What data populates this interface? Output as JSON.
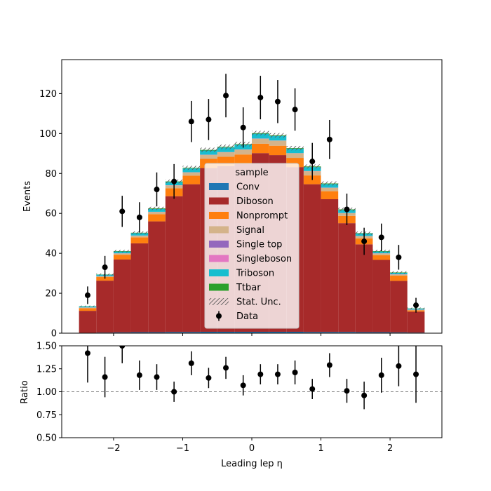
{
  "chart_data": {
    "type": "bar",
    "stacked": true,
    "x_bin_edges": [
      -2.5,
      -2.25,
      -2.0,
      -1.75,
      -1.5,
      -1.25,
      -1.0,
      -0.75,
      -0.5,
      -0.25,
      0.0,
      0.25,
      0.5,
      0.75,
      1.0,
      1.25,
      1.5,
      1.75,
      2.0,
      2.25,
      2.5
    ],
    "xlabel": "Leading lep η",
    "xlim": [
      -2.75,
      2.75
    ],
    "x_ticks": [
      -2,
      -1,
      0,
      1,
      2
    ],
    "x_tick_labels": [
      "−2",
      "−1",
      "0",
      "1",
      "2"
    ],
    "top_panel": {
      "ylabel": "Events",
      "ylim": [
        0,
        137
      ],
      "y_ticks": [
        0,
        20,
        40,
        60,
        80,
        100,
        120
      ],
      "series": [
        {
          "name": "Conv",
          "color": "#1f77b4",
          "values": [
            0.2,
            0.3,
            0.4,
            0.5,
            0.5,
            0.6,
            0.6,
            0.7,
            0.7,
            0.7,
            0.7,
            0.7,
            0.7,
            0.6,
            0.6,
            0.6,
            0.5,
            0.5,
            0.4,
            0.3
          ]
        },
        {
          "name": "Diboson",
          "color": "#a72a2a",
          "values": [
            11,
            26,
            36.5,
            44.5,
            55.5,
            68,
            74,
            82,
            83,
            84,
            89.5,
            88.5,
            82.5,
            74,
            66.5,
            54.5,
            44,
            36.2,
            25.8,
            10.5
          ]
        },
        {
          "name": "Nonprompt",
          "color": "#ff7f0e",
          "values": [
            1.3,
            1.8,
            2.4,
            3.0,
            3.6,
            4.0,
            4.3,
            4.6,
            4.7,
            4.8,
            4.7,
            4.7,
            4.6,
            4.4,
            4.0,
            3.6,
            3.0,
            2.4,
            2.6,
            0.6
          ]
        },
        {
          "name": "Signal",
          "color": "#d4b38a",
          "values": [
            0.3,
            0.4,
            0.6,
            0.8,
            1.1,
            1.4,
            1.6,
            2.0,
            2.2,
            2.4,
            2.5,
            2.5,
            2.3,
            2.1,
            1.7,
            1.4,
            1.1,
            0.8,
            0.6,
            0.3
          ]
        },
        {
          "name": "Single top",
          "color": "#9467bd",
          "values": [
            0.05,
            0.05,
            0.05,
            0.05,
            0.05,
            0.05,
            0.05,
            0.05,
            0.05,
            0.05,
            0.05,
            0.05,
            0.05,
            0.05,
            0.05,
            0.05,
            0.05,
            0.05,
            0.05,
            0.05
          ]
        },
        {
          "name": "Singleboson",
          "color": "#e377c2",
          "values": [
            0.05,
            0.05,
            0.05,
            0.05,
            0.05,
            0.05,
            0.05,
            0.05,
            0.05,
            0.05,
            0.05,
            0.05,
            0.05,
            0.05,
            0.05,
            0.05,
            0.05,
            0.05,
            0.05,
            0.05
          ]
        },
        {
          "name": "Triboson",
          "color": "#17becf",
          "values": [
            0.5,
            0.7,
            0.9,
            1.2,
            1.4,
            1.6,
            1.9,
            2.1,
            2.3,
            2.4,
            2.4,
            2.3,
            2.2,
            2.0,
            1.8,
            1.5,
            1.2,
            0.9,
            0.7,
            0.5
          ]
        },
        {
          "name": "Ttbar",
          "color": "#2ca02c",
          "values": [
            0.1,
            0.1,
            0.2,
            0.2,
            0.3,
            0.3,
            0.3,
            0.3,
            0.3,
            0.3,
            0.3,
            0.3,
            0.3,
            0.3,
            0.3,
            0.3,
            0.2,
            0.2,
            0.2,
            0.1
          ]
        }
      ],
      "stat_unc": [
        0.3,
        0.5,
        0.6,
        0.7,
        0.8,
        0.9,
        1.0,
        1.1,
        1.1,
        1.1,
        1.1,
        1.1,
        1.1,
        1.0,
        1.0,
        0.9,
        0.8,
        0.7,
        0.6,
        0.4
      ],
      "data": {
        "name": "Data",
        "x": [
          -2.375,
          -2.125,
          -1.875,
          -1.625,
          -1.375,
          -1.125,
          -0.875,
          -0.625,
          -0.375,
          -0.125,
          0.125,
          0.375,
          0.625,
          0.875,
          1.125,
          1.375,
          1.625,
          1.875,
          2.125,
          2.375
        ],
        "y": [
          19,
          33,
          61,
          58,
          72,
          76,
          106,
          107,
          119,
          103,
          118,
          116,
          112,
          86,
          97,
          62,
          46,
          48,
          38,
          14
        ],
        "err": [
          4.4,
          5.7,
          7.8,
          7.6,
          8.5,
          8.7,
          10.3,
          10.3,
          10.9,
          10.1,
          10.9,
          10.8,
          10.6,
          9.3,
          9.8,
          7.9,
          6.8,
          6.9,
          6.2,
          3.7
        ]
      }
    },
    "legend": {
      "title": "sample",
      "location": "center",
      "entries": [
        "Conv",
        "Diboson",
        "Nonprompt",
        "Signal",
        "Single top",
        "Singleboson",
        "Triboson",
        "Ttbar",
        "Stat. Unc.",
        "Data"
      ]
    },
    "ratio_panel": {
      "ylabel": "Ratio",
      "ylim": [
        0.5,
        1.5
      ],
      "y_ticks": [
        0.5,
        0.75,
        1.0,
        1.25,
        1.5
      ],
      "y_tick_labels": [
        "0.50",
        "0.75",
        "1.00",
        "1.25",
        "1.50"
      ],
      "reference_line": 1.0,
      "values": [
        1.42,
        1.16,
        1.5,
        1.18,
        1.16,
        1.0,
        1.31,
        1.15,
        1.26,
        1.07,
        1.19,
        1.19,
        1.21,
        1.03,
        1.29,
        1.01,
        0.96,
        1.18,
        1.28,
        1.19
      ],
      "err": [
        0.32,
        0.22,
        0.19,
        0.16,
        0.14,
        0.11,
        0.13,
        0.11,
        0.12,
        0.11,
        0.11,
        0.11,
        0.13,
        0.11,
        0.13,
        0.13,
        0.15,
        0.19,
        0.22,
        0.31
      ]
    }
  }
}
